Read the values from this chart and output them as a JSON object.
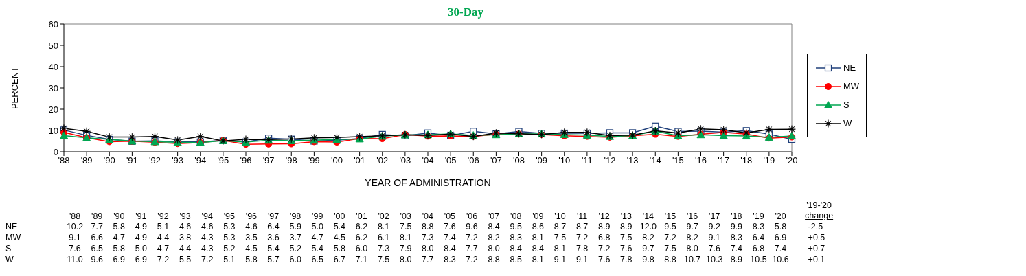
{
  "chart_data": {
    "type": "line",
    "title": "30-Day",
    "xlabel": "YEAR OF ADMINISTRATION",
    "ylabel": "PERCENT",
    "categories": [
      "'88",
      "'89",
      "'90",
      "'91",
      "'92",
      "'93",
      "'94",
      "'95",
      "'96",
      "'97",
      "'98",
      "'99",
      "'00",
      "'01",
      "'02",
      "'03",
      "'04",
      "'05",
      "'06",
      "'07",
      "'08",
      "'09",
      "'10",
      "'11",
      "'12",
      "'13",
      "'14",
      "'15",
      "'16",
      "'17",
      "'18",
      "'19",
      "'20"
    ],
    "series": [
      {
        "name": "NE",
        "color": "#1f3f7a",
        "marker": "square",
        "values": [
          10.2,
          7.7,
          5.8,
          4.9,
          5.1,
          4.6,
          4.6,
          5.3,
          4.6,
          6.4,
          5.9,
          5.0,
          5.4,
          6.2,
          8.1,
          7.5,
          8.8,
          7.6,
          9.6,
          8.4,
          9.5,
          8.6,
          8.7,
          8.7,
          8.9,
          8.9,
          12.0,
          9.5,
          9.7,
          9.2,
          9.9,
          8.3,
          5.8
        ],
        "value_labels": [
          "10.2",
          "7.7",
          "5.8",
          "4.9",
          "5.1",
          "4.6",
          "4.6",
          "5.3",
          "4.6",
          "6.4",
          "5.9",
          "5.0",
          "5.4",
          "6.2",
          "8.1",
          "7.5",
          "8.8",
          "7.6",
          "9.6",
          "8.4",
          "9.5",
          "8.6",
          "8.7",
          "8.7",
          "8.9",
          "8.9",
          "12.0",
          "9.5",
          "9.7",
          "9.2",
          "9.9",
          "8.3",
          "5.8"
        ]
      },
      {
        "name": "MW",
        "color": "#ff0000",
        "marker": "circle",
        "values": [
          9.1,
          6.6,
          4.7,
          4.9,
          4.4,
          3.8,
          4.3,
          5.3,
          3.5,
          3.6,
          3.7,
          4.7,
          4.5,
          6.2,
          6.1,
          8.1,
          7.3,
          7.4,
          7.2,
          8.2,
          8.3,
          8.1,
          7.5,
          7.2,
          6.8,
          7.5,
          8.2,
          7.2,
          8.2,
          9.1,
          8.3,
          6.4,
          6.9
        ],
        "value_labels": [
          "9.1",
          "6.6",
          "4.7",
          "4.9",
          "4.4",
          "3.8",
          "4.3",
          "5.3",
          "3.5",
          "3.6",
          "3.7",
          "4.7",
          "4.5",
          "6.2",
          "6.1",
          "8.1",
          "7.3",
          "7.4",
          "7.2",
          "8.2",
          "8.3",
          "8.1",
          "7.5",
          "7.2",
          "6.8",
          "7.5",
          "8.2",
          "7.2",
          "8.2",
          "9.1",
          "8.3",
          "6.4",
          "6.9"
        ]
      },
      {
        "name": "S",
        "color": "#00a651",
        "marker": "triangle",
        "values": [
          7.6,
          6.5,
          5.8,
          5.0,
          4.7,
          4.4,
          4.3,
          5.2,
          4.5,
          5.4,
          5.2,
          5.4,
          5.8,
          6.0,
          7.3,
          7.9,
          8.0,
          8.4,
          7.7,
          8.0,
          8.4,
          8.4,
          8.1,
          7.8,
          7.2,
          7.6,
          9.7,
          7.5,
          8.0,
          7.6,
          7.4,
          6.8,
          7.4
        ],
        "value_labels": [
          "7.6",
          "6.5",
          "5.8",
          "5.0",
          "4.7",
          "4.4",
          "4.3",
          "5.2",
          "4.5",
          "5.4",
          "5.2",
          "5.4",
          "5.8",
          "6.0",
          "7.3",
          "7.9",
          "8.0",
          "8.4",
          "7.7",
          "8.0",
          "8.4",
          "8.4",
          "8.1",
          "7.8",
          "7.2",
          "7.6",
          "9.7",
          "7.5",
          "8.0",
          "7.6",
          "7.4",
          "6.8",
          "7.4"
        ]
      },
      {
        "name": "W",
        "color": "#000000",
        "marker": "star",
        "values": [
          11.0,
          9.6,
          6.9,
          6.9,
          7.2,
          5.5,
          7.2,
          5.1,
          5.8,
          5.7,
          6.0,
          6.5,
          6.7,
          7.1,
          7.5,
          8.0,
          7.7,
          8.3,
          7.2,
          8.8,
          8.5,
          8.1,
          9.1,
          9.1,
          7.6,
          7.8,
          9.8,
          8.8,
          10.7,
          10.3,
          8.9,
          10.5,
          10.6
        ],
        "value_labels": [
          "11.0",
          "9.6",
          "6.9",
          "6.9",
          "7.2",
          "5.5",
          "7.2",
          "5.1",
          "5.8",
          "5.7",
          "6.0",
          "6.5",
          "6.7",
          "7.1",
          "7.5",
          "8.0",
          "7.7",
          "8.3",
          "7.2",
          "8.8",
          "8.5",
          "8.1",
          "9.1",
          "9.1",
          "7.6",
          "7.8",
          "9.8",
          "8.8",
          "10.7",
          "10.3",
          "8.9",
          "10.5",
          "10.6"
        ]
      }
    ],
    "ylim": [
      0,
      60
    ],
    "yticks": [
      0,
      10,
      20,
      30,
      40,
      50,
      60
    ],
    "legend": "right",
    "line_style": "solid",
    "annotations": [
      "'19-'20 change",
      "-2.5",
      "+0.5",
      "+0.7",
      "+0.1"
    ]
  }
}
